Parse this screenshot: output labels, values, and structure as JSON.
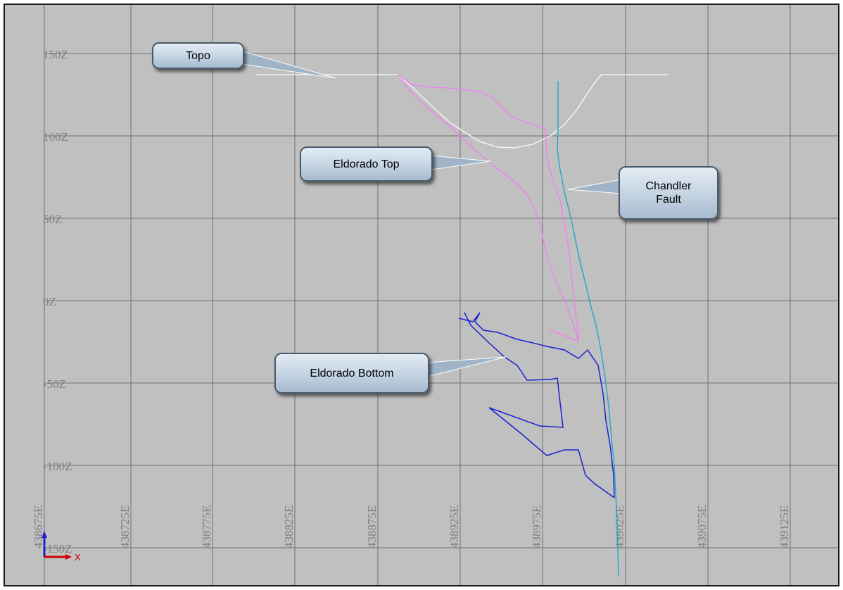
{
  "viewport": {
    "background": "#c0c0c0",
    "grid_color": "#6f6f6f",
    "label_color": "#7f7f7f"
  },
  "axes": {
    "z_labels": [
      "150Z",
      "100Z",
      "50Z",
      "0Z",
      "-50Z",
      "-100Z",
      "-150Z"
    ],
    "e_labels": [
      "438675E",
      "438725E",
      "438775E",
      "438825E",
      "438875E",
      "438925E",
      "438975E",
      "439025E",
      "439075E",
      "439125E"
    ],
    "z_range": [
      -150,
      150
    ],
    "e_range": [
      438675,
      439125
    ]
  },
  "callouts": {
    "topo": "Topo",
    "eldorado_top": "Eldorado Top",
    "chandler_fault": "Chandler\nFault",
    "eldorado_bottom": "Eldorado Bottom"
  },
  "traces": {
    "topo": {
      "color": "#f4f4f4"
    },
    "eldorado_top": {
      "color": "#ee82ee"
    },
    "chandler_fault": {
      "color": "#2aa7c8"
    },
    "eldorado_bottom": {
      "color": "#1a22d0"
    }
  },
  "axis_triad": {
    "x_label": "X",
    "x_color": "#cc0000",
    "z_color": "#2222cc"
  }
}
